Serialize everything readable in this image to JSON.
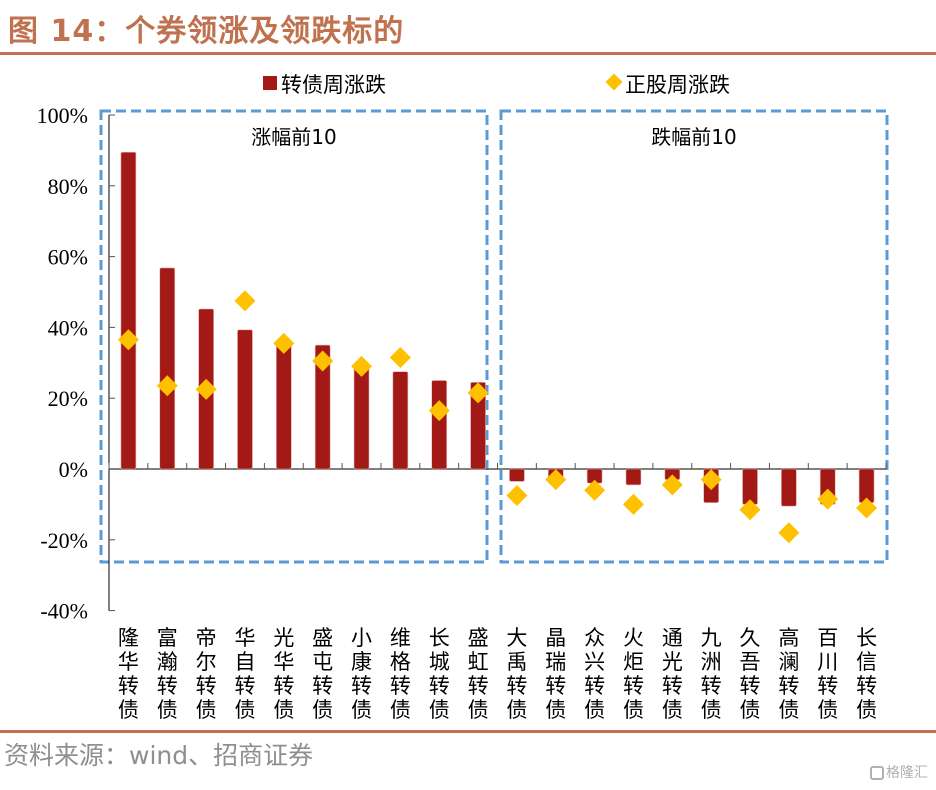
{
  "header": {
    "title": "图 14：个券领涨及领跌标的"
  },
  "footer": {
    "source": "资料来源：wind、招商证券",
    "watermark": "格隆汇"
  },
  "colors": {
    "bar": "#a31915",
    "marker": "#ffc000",
    "group_box": "#5b9bd5",
    "title": "#c0714f",
    "axis": "#000000"
  },
  "chart_data": {
    "type": "bar",
    "title": "个券领涨及领跌标的",
    "xlabel": "",
    "ylabel": "",
    "ylim": [
      -0.4,
      1.0
    ],
    "yticks": [
      1.0,
      0.8,
      0.6,
      0.4,
      0.2,
      0.0,
      -0.2,
      -0.4
    ],
    "ytick_labels": [
      "100%",
      "80%",
      "60%",
      "40%",
      "20%",
      "0%",
      "-20%",
      "-40%"
    ],
    "grid": false,
    "legend_position": "top-center",
    "categories": [
      "隆华转债",
      "富瀚转债",
      "帝尔转债",
      "华自转债",
      "光华转债",
      "盛屯转债",
      "小康转债",
      "维格转债",
      "长城转债",
      "盛虹转债",
      "大禹转债",
      "晶瑞转债",
      "众兴转债",
      "火炬转债",
      "通光转债",
      "九洲转债",
      "久吾转债",
      "高澜转债",
      "百川转债",
      "长信转债"
    ],
    "series": [
      {
        "name": "转债周涨跌",
        "kind": "bar",
        "values": [
          0.895,
          0.568,
          0.452,
          0.393,
          0.353,
          0.35,
          0.285,
          0.275,
          0.25,
          0.245,
          -0.035,
          -0.025,
          -0.04,
          -0.045,
          -0.03,
          -0.095,
          -0.1,
          -0.105,
          -0.1,
          -0.095
        ]
      },
      {
        "name": "正股周涨跌",
        "kind": "marker-diamond",
        "values": [
          0.365,
          0.235,
          0.225,
          0.475,
          0.355,
          0.305,
          0.29,
          0.315,
          0.165,
          0.215,
          -0.075,
          -0.03,
          -0.06,
          -0.1,
          -0.045,
          -0.03,
          -0.115,
          -0.18,
          -0.085,
          -0.11
        ]
      }
    ],
    "groups": [
      {
        "label": "涨幅前10",
        "start": 0,
        "end": 9
      },
      {
        "label": "跌幅前10",
        "start": 10,
        "end": 19
      }
    ]
  }
}
